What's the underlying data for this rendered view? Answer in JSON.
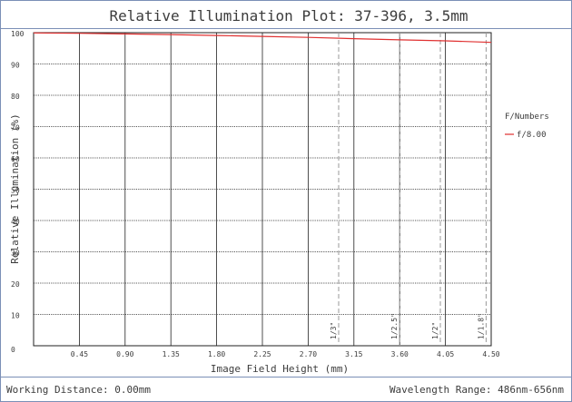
{
  "title": "Relative Illumination Plot: 37-396, 3.5mm",
  "footer": {
    "left": "Working Distance: 0.00mm",
    "right": "Wavelength Range: 486nm-656nm"
  },
  "legend": {
    "title": "F/Numbers",
    "entries": [
      {
        "label": "f/8.00",
        "color": "#e03030"
      }
    ]
  },
  "colors": {
    "frame": "#7b8fb6",
    "grid": "#222222",
    "marker": "#9a9a9a",
    "series": "#e03030"
  },
  "chart_data": {
    "type": "line",
    "title": "Relative Illumination Plot: 37-396, 3.5mm",
    "xlabel": "Image Field Height (mm)",
    "ylabel": "Relative Illumination (%)",
    "xlim": [
      0,
      4.5
    ],
    "ylim": [
      0,
      100
    ],
    "x_ticks": [
      "0.45",
      "0.90",
      "1.35",
      "1.80",
      "2.25",
      "2.70",
      "3.15",
      "3.60",
      "4.05",
      "4.50"
    ],
    "y_ticks": [
      "0",
      "10",
      "20",
      "30",
      "40",
      "50",
      "60",
      "70",
      "80",
      "90",
      "100"
    ],
    "x_tick_values": [
      0.45,
      0.9,
      1.35,
      1.8,
      2.25,
      2.7,
      3.15,
      3.6,
      4.05,
      4.5
    ],
    "y_tick_values": [
      0,
      10,
      20,
      30,
      40,
      50,
      60,
      70,
      80,
      90,
      100
    ],
    "grid": true,
    "legend_position": "right",
    "series": [
      {
        "name": "f/8.00",
        "color": "#e03030",
        "x": [
          0,
          0.45,
          0.9,
          1.35,
          1.8,
          2.25,
          2.7,
          3.15,
          3.6,
          4.05,
          4.5
        ],
        "y": [
          99.9,
          99.8,
          99.6,
          99.4,
          99.1,
          98.8,
          98.5,
          98.1,
          97.7,
          97.4,
          96.9
        ]
      }
    ],
    "sensor_markers": [
      {
        "label": "1/3\"",
        "x": 3.0
      },
      {
        "label": "1/2.5\"",
        "x": 3.6
      },
      {
        "label": "1/2\"",
        "x": 4.0
      },
      {
        "label": "1/1.8\"",
        "x": 4.45
      }
    ]
  }
}
